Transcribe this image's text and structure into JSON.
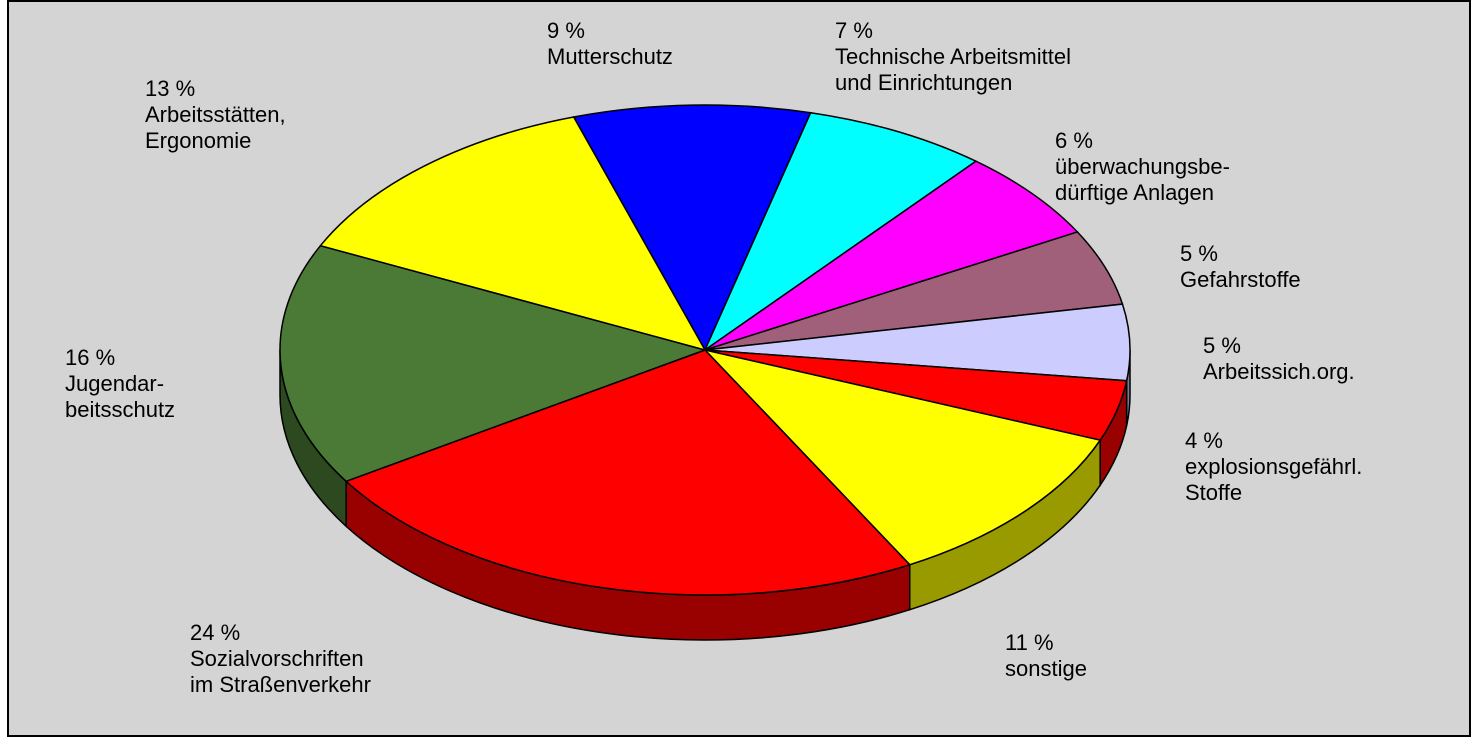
{
  "chart_data": {
    "type": "pie",
    "categories": [
      "Mutterschutz",
      "Technische Arbeitsmittel\nund Einrichtungen",
      "überwachungsbe-\ndürftige Anlagen",
      "Gefahrstoffe",
      "Arbeitssich.org.",
      "explosionsgefährl.\nStoffe",
      "sonstige",
      "Sozialvorschriften\nim Straßenverkehr",
      "Jugendar-\nbeitsschutz",
      "Arbeitsstätten,\nErgonomie"
    ],
    "values": [
      9,
      7,
      6,
      5,
      5,
      4,
      11,
      24,
      16,
      13
    ],
    "value_labels": [
      "9 %",
      "7 %",
      "6 %",
      "5 %",
      "5 %",
      "4 %",
      "11 %",
      "24 %",
      "16 %",
      "13 %"
    ],
    "colors": [
      "#0000ff",
      "#00ffff",
      "#ff00ff",
      "#a0607a",
      "#ccccff",
      "#ff0000",
      "#ffff00",
      "#ff0000",
      "#4a7a35",
      "#ffff00"
    ]
  }
}
